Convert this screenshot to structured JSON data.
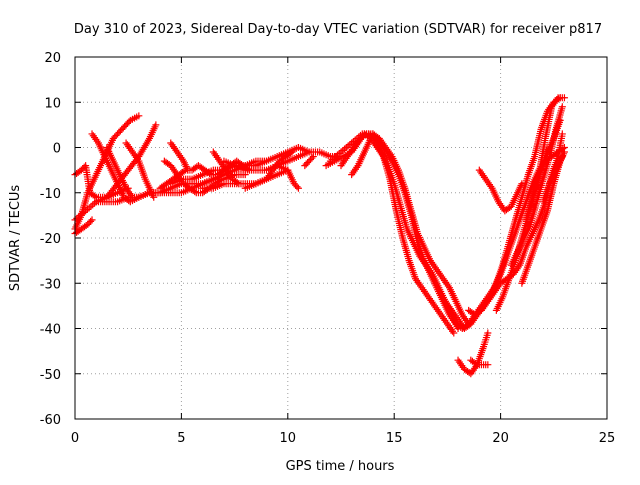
{
  "chart_data": {
    "type": "scatter",
    "title": "Day 310 of 2023, Sidereal Day-to-day VTEC variation (SDTVAR) for receiver p817",
    "xlabel": "GPS time / hours",
    "ylabel": "SDTVAR / TECUs",
    "xlim": [
      0,
      25
    ],
    "ylim": [
      -60,
      20
    ],
    "x_ticks": [
      "0",
      "5",
      "10",
      "15",
      "20",
      "25"
    ],
    "y_ticks": [
      "20",
      "10",
      "0",
      "-10",
      "-20",
      "-30",
      "-40",
      "-50",
      "-60"
    ],
    "grid": true,
    "marker": "plus",
    "color": "#ff0000",
    "tracks": [
      [
        [
          0.0,
          -6
        ],
        [
          0.3,
          -5
        ],
        [
          0.5,
          -4
        ],
        [
          0.7,
          -10
        ],
        [
          1.0,
          -11
        ],
        [
          1.5,
          -11
        ],
        [
          2.0,
          -10
        ],
        [
          2.5,
          -9
        ]
      ],
      [
        [
          0.0,
          -18
        ],
        [
          0.3,
          -15
        ],
        [
          0.6,
          -10
        ],
        [
          0.9,
          -7
        ],
        [
          1.2,
          -4
        ],
        [
          1.5,
          -1
        ],
        [
          1.8,
          2
        ],
        [
          2.2,
          4
        ],
        [
          2.6,
          6
        ],
        [
          3.0,
          7
        ]
      ],
      [
        [
          0.0,
          -16
        ],
        [
          0.5,
          -14
        ],
        [
          1.0,
          -12
        ],
        [
          1.5,
          -11
        ],
        [
          2.0,
          -8
        ],
        [
          2.5,
          -5
        ],
        [
          3.0,
          -2
        ],
        [
          3.5,
          2
        ],
        [
          3.8,
          5
        ]
      ],
      [
        [
          0.0,
          -19
        ],
        [
          0.3,
          -18
        ],
        [
          0.6,
          -17
        ],
        [
          0.8,
          -16
        ]
      ],
      [
        [
          0.8,
          3
        ],
        [
          1.1,
          1
        ],
        [
          1.4,
          -2
        ],
        [
          1.7,
          -5
        ],
        [
          2.0,
          -8
        ],
        [
          2.3,
          -11
        ],
        [
          2.6,
          -12
        ],
        [
          3.0,
          -11
        ],
        [
          3.5,
          -10
        ],
        [
          4.0,
          -10
        ],
        [
          4.5,
          -9
        ],
        [
          5.0,
          -8
        ],
        [
          5.5,
          -8
        ],
        [
          6.0,
          -8
        ],
        [
          6.5,
          -7
        ],
        [
          7.0,
          -7
        ],
        [
          7.5,
          -6
        ],
        [
          8.0,
          -6
        ]
      ],
      [
        [
          1.5,
          0
        ],
        [
          1.8,
          -3
        ],
        [
          2.1,
          -6
        ],
        [
          2.4,
          -9
        ],
        [
          2.7,
          -11
        ]
      ],
      [
        [
          1.0,
          -12
        ],
        [
          1.5,
          -12
        ],
        [
          2.0,
          -12
        ],
        [
          2.5,
          -11
        ],
        [
          3.0,
          -11
        ],
        [
          3.5,
          -10
        ],
        [
          4.0,
          -10
        ],
        [
          4.5,
          -10
        ],
        [
          5.0,
          -10
        ],
        [
          5.5,
          -9
        ],
        [
          6.0,
          -8
        ],
        [
          6.5,
          -7
        ],
        [
          7.0,
          -6
        ],
        [
          7.5,
          -5
        ],
        [
          8.0,
          -4
        ],
        [
          8.5,
          -3
        ],
        [
          9.0,
          -3
        ]
      ],
      [
        [
          2.4,
          1
        ],
        [
          2.7,
          -1
        ],
        [
          3.0,
          -3
        ],
        [
          3.3,
          -7
        ],
        [
          3.7,
          -11
        ]
      ],
      [
        [
          4.0,
          -9
        ],
        [
          4.3,
          -8
        ],
        [
          4.6,
          -7
        ],
        [
          4.9,
          -6
        ],
        [
          5.2,
          -5
        ],
        [
          5.5,
          -5
        ],
        [
          5.8,
          -4
        ],
        [
          6.1,
          -5
        ],
        [
          6.4,
          -6
        ],
        [
          6.7,
          -6
        ],
        [
          7.0,
          -5
        ],
        [
          7.3,
          -4
        ],
        [
          7.6,
          -3
        ],
        [
          7.9,
          -4
        ],
        [
          8.2,
          -5
        ]
      ],
      [
        [
          4.2,
          -3
        ],
        [
          4.5,
          -4
        ],
        [
          4.8,
          -6
        ],
        [
          5.1,
          -8
        ],
        [
          5.4,
          -9
        ],
        [
          5.7,
          -10
        ],
        [
          6.0,
          -10
        ],
        [
          6.3,
          -9
        ],
        [
          6.6,
          -8
        ],
        [
          6.9,
          -7
        ]
      ],
      [
        [
          4.5,
          -8
        ],
        [
          5.0,
          -7
        ],
        [
          5.5,
          -7
        ],
        [
          6.0,
          -6
        ],
        [
          6.5,
          -5
        ],
        [
          7.0,
          -5
        ],
        [
          7.5,
          -4
        ],
        [
          8.0,
          -4
        ],
        [
          8.5,
          -4
        ],
        [
          9.0,
          -3
        ],
        [
          9.5,
          -2
        ],
        [
          10.0,
          -1
        ],
        [
          10.5,
          0
        ]
      ],
      [
        [
          4.5,
          1
        ],
        [
          4.8,
          -1
        ],
        [
          5.1,
          -3
        ],
        [
          5.3,
          -5
        ]
      ],
      [
        [
          6.0,
          -9
        ],
        [
          6.5,
          -9
        ],
        [
          7.0,
          -8
        ],
        [
          7.5,
          -8
        ],
        [
          8.0,
          -8
        ],
        [
          8.5,
          -8
        ],
        [
          9.0,
          -7
        ],
        [
          9.5,
          -6
        ],
        [
          10.0,
          -5
        ]
      ],
      [
        [
          6.5,
          -1
        ],
        [
          6.8,
          -3
        ],
        [
          7.1,
          -5
        ],
        [
          7.4,
          -7
        ],
        [
          7.7,
          -8
        ]
      ],
      [
        [
          7.0,
          -3
        ],
        [
          7.5,
          -4
        ],
        [
          8.0,
          -5
        ],
        [
          8.5,
          -5
        ],
        [
          9.0,
          -5
        ],
        [
          9.5,
          -4
        ],
        [
          10.0,
          -3
        ],
        [
          10.5,
          -2
        ],
        [
          11.0,
          -1
        ]
      ],
      [
        [
          8.0,
          -9
        ],
        [
          8.5,
          -8
        ],
        [
          9.0,
          -7
        ],
        [
          9.3,
          -5
        ],
        [
          9.6,
          -3
        ],
        [
          9.9,
          -2
        ],
        [
          10.2,
          -1
        ]
      ],
      [
        [
          9.5,
          -4
        ],
        [
          10.0,
          -5
        ],
        [
          10.3,
          -8
        ],
        [
          10.5,
          -9
        ]
      ],
      [
        [
          10.5,
          0
        ],
        [
          11.0,
          -1
        ],
        [
          11.5,
          -1
        ],
        [
          12.0,
          -2
        ],
        [
          12.3,
          -2
        ]
      ],
      [
        [
          10.8,
          -4
        ],
        [
          11.0,
          -3
        ],
        [
          11.2,
          -2
        ]
      ],
      [
        [
          12.0,
          -3
        ],
        [
          12.5,
          -1
        ],
        [
          13.0,
          1
        ],
        [
          13.5,
          3
        ],
        [
          13.8,
          3
        ],
        [
          14.1,
          2
        ],
        [
          14.4,
          -1
        ],
        [
          14.7,
          -4
        ],
        [
          15.0,
          -8
        ],
        [
          15.3,
          -13
        ],
        [
          15.6,
          -18
        ],
        [
          15.9,
          -21
        ],
        [
          16.2,
          -24
        ],
        [
          16.5,
          -26
        ],
        [
          16.8,
          -28
        ],
        [
          17.1,
          -31
        ],
        [
          17.4,
          -34
        ],
        [
          17.7,
          -37
        ],
        [
          18.0,
          -40
        ]
      ],
      [
        [
          11.8,
          -4
        ],
        [
          12.2,
          -3
        ],
        [
          12.6,
          -2
        ],
        [
          13.0,
          -1
        ],
        [
          13.3,
          1
        ],
        [
          13.6,
          3
        ],
        [
          13.9,
          2
        ],
        [
          14.2,
          0
        ],
        [
          14.5,
          -2
        ],
        [
          14.8,
          -7
        ],
        [
          15.1,
          -14
        ],
        [
          15.4,
          -20
        ],
        [
          15.7,
          -25
        ],
        [
          16.0,
          -29
        ],
        [
          16.3,
          -31
        ],
        [
          16.6,
          -33
        ],
        [
          16.9,
          -35
        ],
        [
          17.2,
          -37
        ],
        [
          17.5,
          -39
        ],
        [
          17.8,
          -41
        ]
      ],
      [
        [
          12.5,
          -4
        ],
        [
          12.8,
          -2
        ],
        [
          13.1,
          0
        ],
        [
          13.4,
          2
        ],
        [
          13.7,
          3
        ],
        [
          14.0,
          3
        ],
        [
          14.3,
          2
        ],
        [
          14.6,
          0
        ],
        [
          14.9,
          -2
        ],
        [
          15.2,
          -5
        ],
        [
          15.5,
          -9
        ],
        [
          15.8,
          -14
        ],
        [
          16.1,
          -19
        ],
        [
          16.4,
          -22
        ],
        [
          16.7,
          -25
        ],
        [
          17.0,
          -27
        ],
        [
          17.3,
          -29
        ],
        [
          17.6,
          -31
        ],
        [
          17.9,
          -34
        ],
        [
          18.2,
          -37
        ],
        [
          18.5,
          -39
        ]
      ],
      [
        [
          14.0,
          3
        ],
        [
          14.3,
          1
        ],
        [
          14.6,
          -1
        ],
        [
          14.9,
          -3
        ],
        [
          15.2,
          -6
        ],
        [
          15.5,
          -10
        ],
        [
          15.8,
          -15
        ],
        [
          16.1,
          -21
        ],
        [
          16.4,
          -25
        ],
        [
          16.7,
          -28
        ],
        [
          17.0,
          -31
        ],
        [
          17.3,
          -34
        ],
        [
          17.6,
          -37
        ],
        [
          17.9,
          -39
        ],
        [
          18.2,
          -40
        ],
        [
          18.5,
          -39
        ],
        [
          18.8,
          -37
        ],
        [
          19.1,
          -35
        ],
        [
          19.4,
          -33
        ],
        [
          19.7,
          -31
        ],
        [
          20.0,
          -28
        ],
        [
          20.3,
          -24
        ],
        [
          20.6,
          -20
        ],
        [
          20.9,
          -16
        ],
        [
          21.2,
          -12
        ],
        [
          21.5,
          -8
        ],
        [
          21.8,
          -5
        ],
        [
          22.1,
          -3
        ],
        [
          22.4,
          -2
        ],
        [
          22.7,
          -1
        ],
        [
          23.0,
          0
        ]
      ],
      [
        [
          13.0,
          -6
        ],
        [
          13.3,
          -4
        ],
        [
          13.6,
          -1
        ],
        [
          13.9,
          2
        ]
      ],
      [
        [
          17.4,
          -34
        ],
        [
          17.7,
          -36
        ],
        [
          18.0,
          -38
        ],
        [
          18.3,
          -40
        ],
        [
          18.6,
          -39
        ],
        [
          18.9,
          -37
        ],
        [
          19.2,
          -35
        ],
        [
          19.5,
          -33
        ],
        [
          19.8,
          -30
        ],
        [
          20.1,
          -26
        ],
        [
          20.4,
          -21
        ],
        [
          20.7,
          -16
        ],
        [
          21.0,
          -11
        ],
        [
          21.3,
          -6
        ],
        [
          21.6,
          -2
        ],
        [
          21.9,
          4
        ],
        [
          22.2,
          8
        ],
        [
          22.5,
          10
        ],
        [
          22.8,
          11
        ]
      ],
      [
        [
          18.0,
          -47
        ],
        [
          18.3,
          -49
        ],
        [
          18.6,
          -50
        ],
        [
          18.9,
          -48
        ],
        [
          19.2,
          -44
        ],
        [
          19.4,
          -41
        ]
      ],
      [
        [
          18.6,
          -47
        ],
        [
          18.9,
          -48
        ],
        [
          19.2,
          -48
        ],
        [
          19.4,
          -48
        ]
      ],
      [
        [
          18.5,
          -36
        ],
        [
          18.8,
          -37
        ],
        [
          19.1,
          -36
        ],
        [
          19.4,
          -34
        ],
        [
          19.7,
          -32
        ],
        [
          20.0,
          -30
        ],
        [
          20.3,
          -29
        ],
        [
          20.6,
          -28
        ],
        [
          20.9,
          -26
        ],
        [
          21.2,
          -22
        ],
        [
          21.5,
          -19
        ],
        [
          21.8,
          -16
        ],
        [
          22.1,
          -12
        ],
        [
          22.4,
          -6
        ],
        [
          22.7,
          -2
        ],
        [
          22.9,
          3
        ]
      ],
      [
        [
          19.0,
          -5
        ],
        [
          19.3,
          -7
        ],
        [
          19.6,
          -9
        ],
        [
          19.9,
          -12
        ],
        [
          20.2,
          -14
        ],
        [
          20.5,
          -13
        ],
        [
          20.8,
          -10
        ],
        [
          21.0,
          -8
        ]
      ],
      [
        [
          19.8,
          -36
        ],
        [
          20.1,
          -33
        ],
        [
          20.4,
          -29
        ],
        [
          20.7,
          -25
        ],
        [
          21.0,
          -20
        ],
        [
          21.3,
          -15
        ],
        [
          21.6,
          -10
        ],
        [
          21.9,
          -5
        ],
        [
          22.2,
          -1
        ],
        [
          22.5,
          2
        ],
        [
          22.8,
          6
        ]
      ],
      [
        [
          20.5,
          -26
        ],
        [
          20.8,
          -23
        ],
        [
          21.1,
          -20
        ],
        [
          21.4,
          -17
        ],
        [
          21.7,
          -12
        ],
        [
          22.0,
          -7
        ],
        [
          22.3,
          -2
        ],
        [
          22.6,
          4
        ],
        [
          22.9,
          9
        ]
      ],
      [
        [
          21.0,
          -30
        ],
        [
          21.3,
          -26
        ],
        [
          21.6,
          -22
        ],
        [
          21.9,
          -18
        ],
        [
          22.2,
          -14
        ],
        [
          22.5,
          -8
        ],
        [
          22.8,
          -3
        ],
        [
          23.0,
          -1
        ]
      ],
      [
        [
          21.2,
          -16
        ],
        [
          21.5,
          -11
        ],
        [
          21.8,
          -6
        ],
        [
          22.1,
          2
        ],
        [
          22.4,
          9
        ],
        [
          22.7,
          11
        ],
        [
          23.0,
          11
        ]
      ],
      [
        [
          22.0,
          -12
        ],
        [
          22.3,
          -8
        ],
        [
          22.6,
          -5
        ],
        [
          22.9,
          -2
        ]
      ]
    ]
  }
}
